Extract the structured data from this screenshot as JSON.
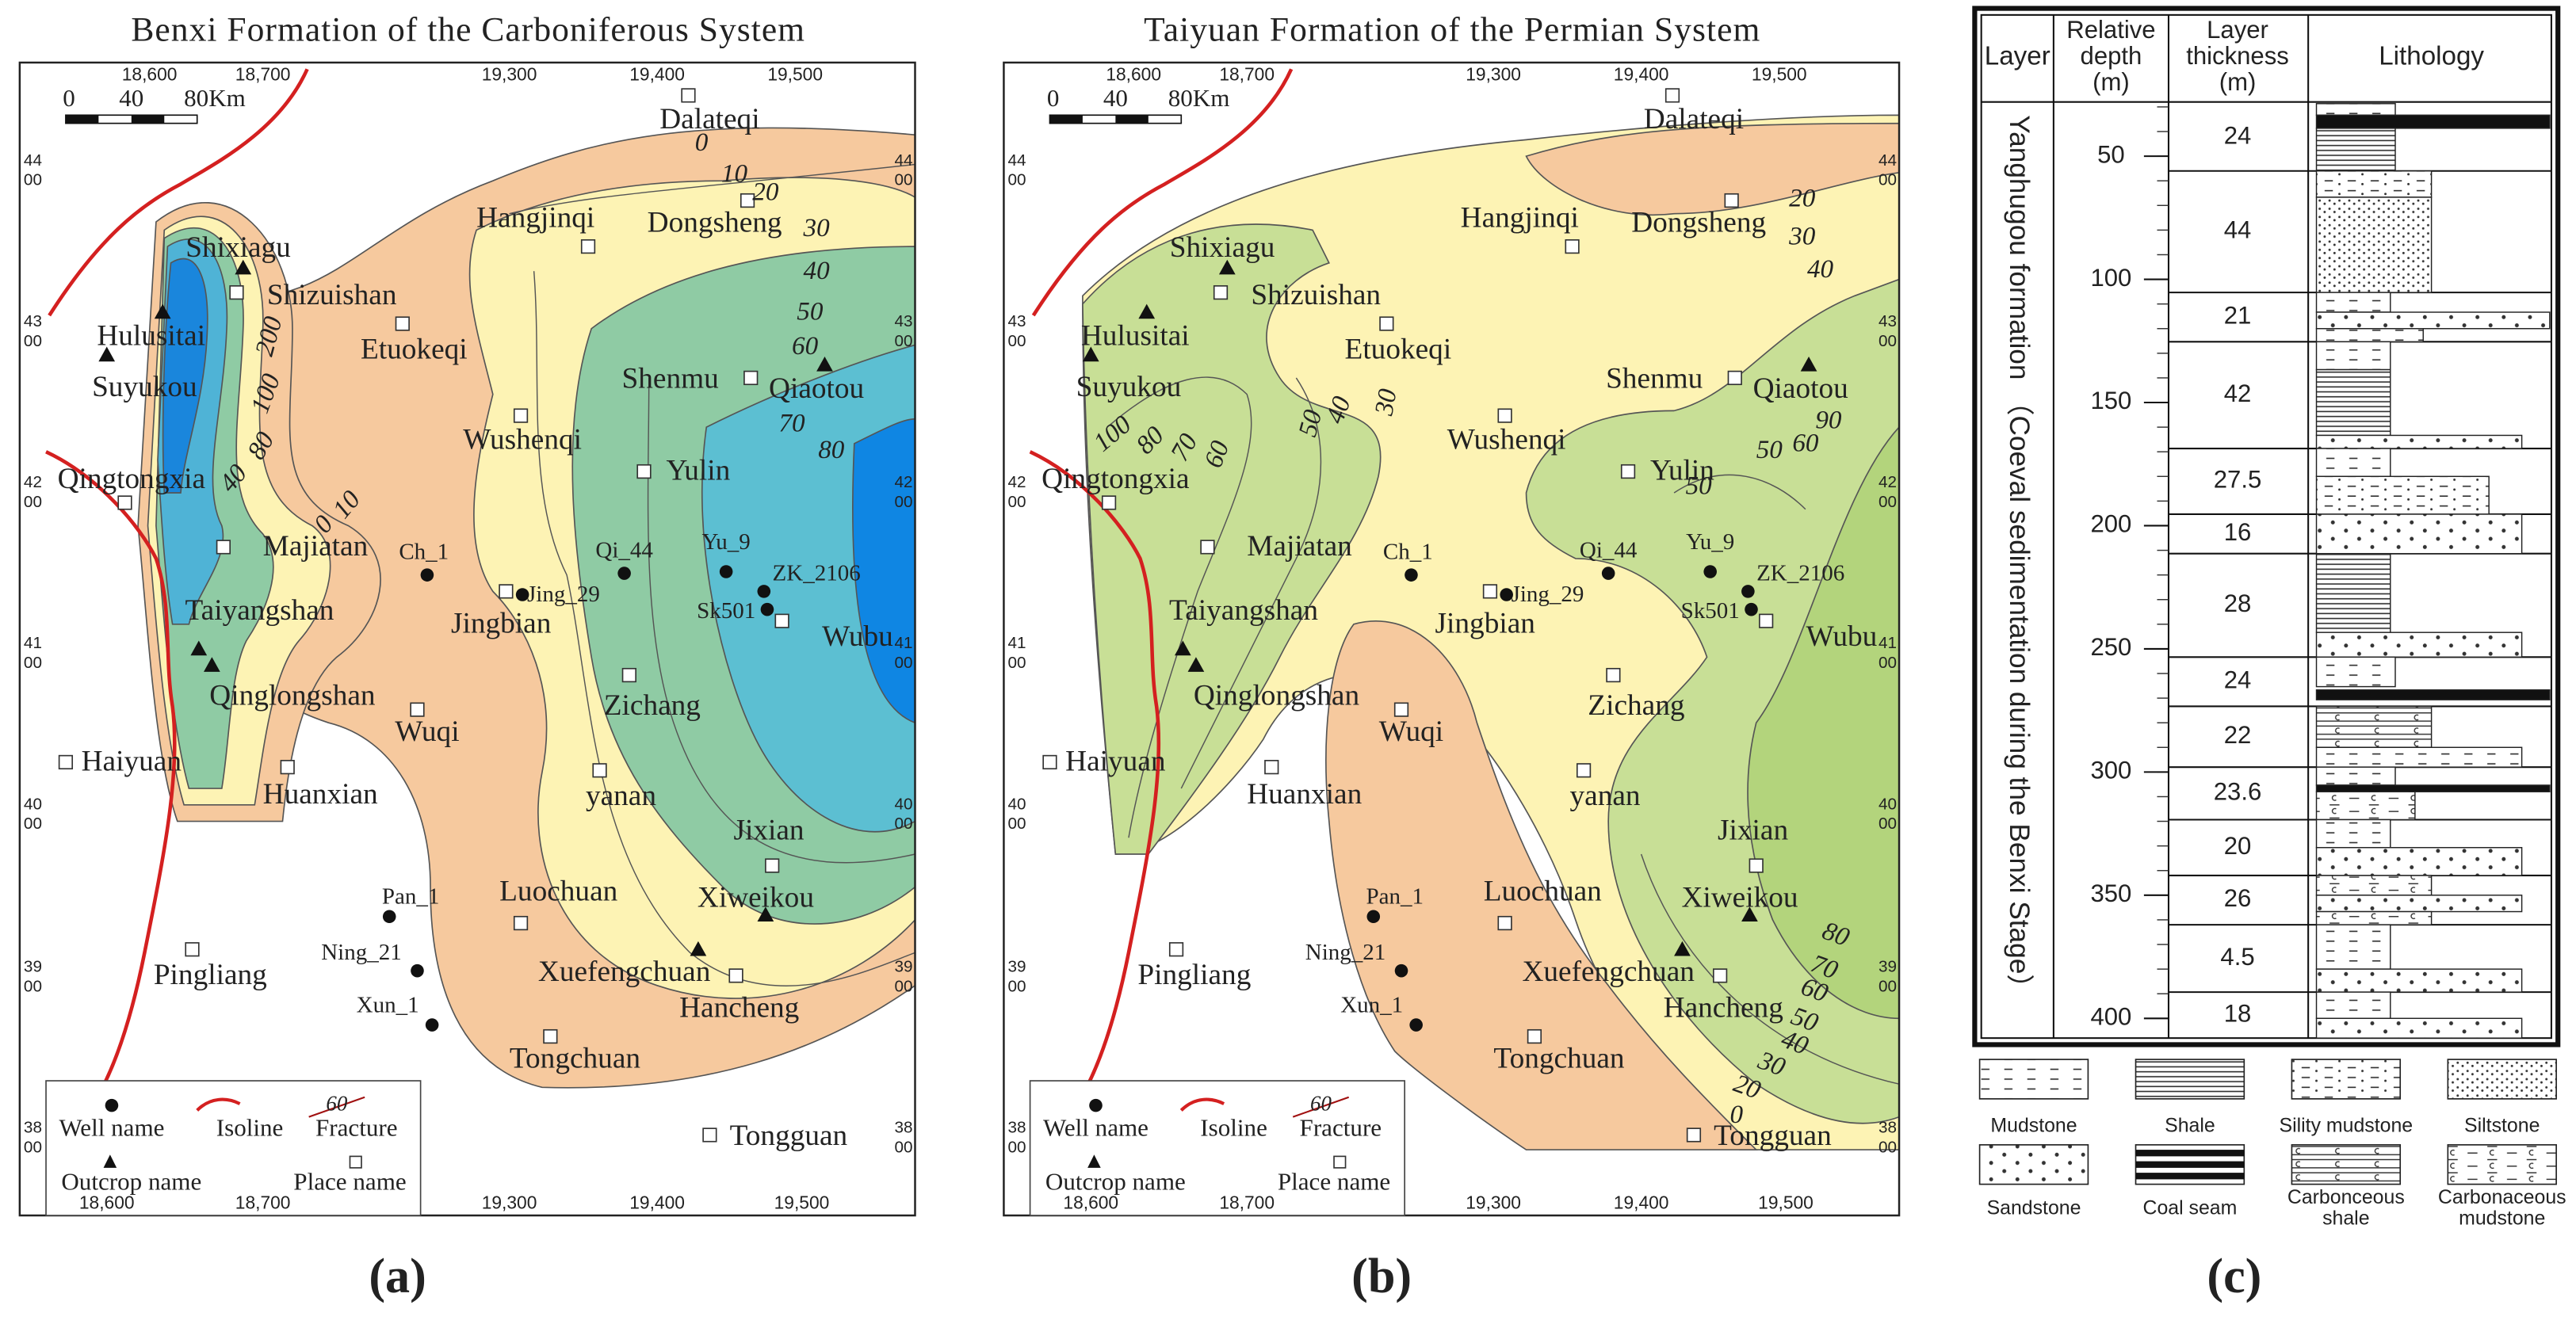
{
  "panels": [
    {
      "title": "Benxi Formation of the Carboniferous System",
      "label": "(a)",
      "scale": [
        "0",
        "40",
        "80Km"
      ],
      "top_ticks": [
        "18,600",
        "18,700",
        "19,300",
        "19,400",
        "19,500"
      ],
      "bottom_ticks": [
        "18,600",
        "18,700",
        "19,300",
        "19,400",
        "19,500"
      ],
      "side_ticks": [
        [
          "44",
          "00"
        ],
        [
          "43",
          "00"
        ],
        [
          "42",
          "00"
        ],
        [
          "41",
          "00"
        ],
        [
          "40",
          "00"
        ],
        [
          "39",
          "00"
        ],
        [
          "38",
          "00"
        ]
      ],
      "names": [
        "Dalateqi",
        "Hangjinqi",
        "Dongsheng",
        "Shixiagu",
        "Shizuishan",
        "Hulusitai",
        "Suyukou",
        "Etuokeqi",
        "Shenmu",
        "Qiaotou",
        "Wushenqi",
        "Yulin",
        "Qingtongxia",
        "Majiatan",
        "Ch_1",
        "Qi_44",
        "Yu_9",
        "ZK_2106",
        "Jing_29",
        "Jingbian",
        "Sk501",
        "Taiyangshan",
        "Wubu",
        "Qinglongshan",
        "Zichang",
        "Wuqi",
        "Haiyuan",
        "Huanxian",
        "yanan",
        "Jixian",
        "Luochuan",
        "Xiweikou",
        "Pan_1",
        "Ning_21",
        "Xun_1",
        "Pingliang",
        "Xuefengchuan",
        "Hancheng",
        "Tongchuan",
        "Tongguan"
      ],
      "contours": [
        0,
        10,
        20,
        30,
        40,
        50,
        60,
        70,
        80,
        200,
        100,
        80,
        40,
        10,
        0
      ],
      "legend": [
        "Well name",
        "Isoline",
        "Fracture",
        "Outcrop name",
        "Place name",
        "60"
      ]
    },
    {
      "title": "Taiyuan Formation of the Permian System",
      "label": "(b)",
      "scale": [
        "0",
        "40",
        "80Km"
      ],
      "top_ticks": [
        "18,600",
        "18,700",
        "19,300",
        "19,400",
        "19,500"
      ],
      "bottom_ticks": [
        "18,600",
        "18,700",
        "19,300",
        "19,400",
        "19,500"
      ],
      "side_ticks": [
        [
          "44",
          "00"
        ],
        [
          "43",
          "00"
        ],
        [
          "42",
          "00"
        ],
        [
          "41",
          "00"
        ],
        [
          "40",
          "00"
        ],
        [
          "39",
          "00"
        ],
        [
          "38",
          "00"
        ]
      ],
      "names": [
        "Dalateqi",
        "Hangjinqi",
        "Dongsheng",
        "Shixiagu",
        "Shizuishan",
        "Hulusitai",
        "Suyukou",
        "Etuokeqi",
        "Shenmu",
        "Qiaotou",
        "Wushenqi",
        "Yulin",
        "Qingtongxia",
        "Majiatan",
        "Ch_1",
        "Qi_44",
        "Yu_9",
        "ZK_2106",
        "Jing_29",
        "Jingbian",
        "Sk501",
        "Taiyangshan",
        "Wubu",
        "Qinglongshan",
        "Zichang",
        "Wuqi",
        "Haiyuan",
        "Huanxian",
        "yanan",
        "Jixian",
        "Luochuan",
        "Xiweikou",
        "Pan_1",
        "Ning_21",
        "Xun_1",
        "Pingliang",
        "Xuefengchuan",
        "Hancheng",
        "Tongchuan",
        "Tongguan"
      ],
      "contours": [
        20,
        30,
        40,
        90,
        60,
        50,
        100,
        80,
        70,
        60,
        50,
        40,
        30,
        50,
        80,
        70,
        60,
        50,
        40,
        30,
        20,
        0
      ],
      "legend": [
        "Well name",
        "Isoline",
        "Fracture",
        "Outcrop name",
        "Place name",
        "60"
      ]
    }
  ],
  "column": {
    "label": "(c)",
    "headers": [
      [
        "Layer"
      ],
      [
        "Relative",
        "depth",
        "(m)"
      ],
      [
        "Layer",
        "thickness",
        "(m)"
      ],
      [
        "Lithology"
      ]
    ],
    "formation": "Yanghugou formation （Coeval sedimentation during the Benxi Stage）",
    "depth_ticks": [
      50,
      100,
      150,
      200,
      250,
      300,
      350,
      400
    ],
    "thickness": [
      24,
      44,
      21,
      42,
      27.5,
      16,
      28,
      24,
      22,
      23.6,
      20,
      26,
      4.5,
      18
    ],
    "legend": [
      [
        "Mudstone"
      ],
      [
        "Shale"
      ],
      [
        "Sility mudstone"
      ],
      [
        "Siltstone"
      ],
      [
        "Sandstone"
      ],
      [
        "Coal seam"
      ],
      [
        "Carbonceous",
        "shale"
      ],
      [
        "Carbonaceous",
        "mudstone"
      ]
    ]
  }
}
